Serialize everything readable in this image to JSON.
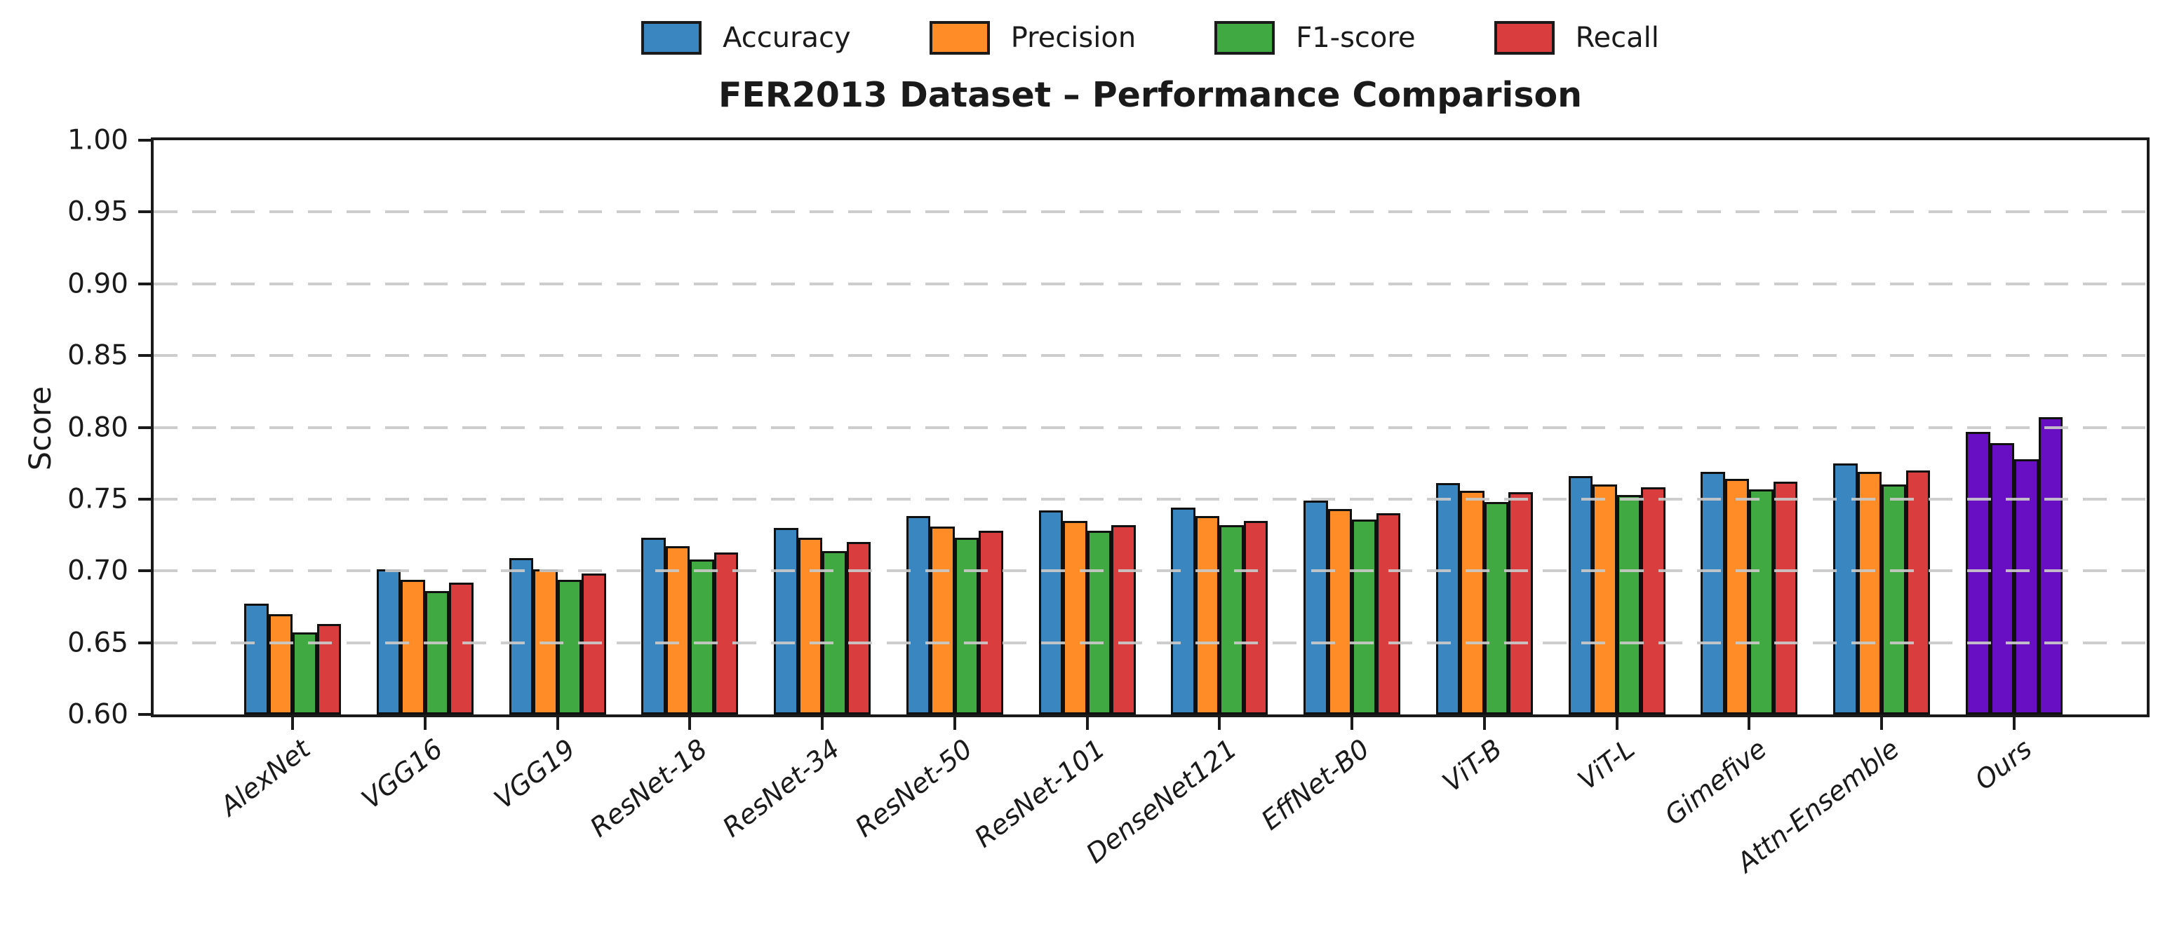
{
  "figure": {
    "title": "FER2013 Dataset – Performance Comparison",
    "ylabel": "Score"
  },
  "legend": {
    "position": "top center",
    "items": [
      {
        "label": "Accuracy",
        "color": "#3a86c0"
      },
      {
        "label": "Precision",
        "color": "#ff8c26"
      },
      {
        "label": "F1-score",
        "color": "#41a941"
      },
      {
        "label": "Recall",
        "color": "#da3d3d"
      }
    ]
  },
  "chart_data": {
    "type": "bar",
    "title": "FER2013 Dataset – Performance Comparison",
    "xlabel": "",
    "ylabel": "Score",
    "ylim": [
      0.6,
      1.0
    ],
    "yticks": [
      0.6,
      0.65,
      0.7,
      0.75,
      0.8,
      0.85,
      0.9,
      0.95,
      1.0
    ],
    "grid": "horizontal dashed gridlines every 0.05, drawn above bars",
    "legend_position": "top center, horizontal",
    "categories": [
      "AlexNet",
      "VGG16",
      "VGG19",
      "ResNet-18",
      "ResNet-34",
      "ResNet-50",
      "ResNet-101",
      "DenseNet121",
      "EffNet-B0",
      "ViT-B",
      "ViT-L",
      "Gimefive",
      "Attn-Ensemble",
      "Ours"
    ],
    "series": [
      {
        "name": "Accuracy",
        "color": "#3a86c0",
        "values": [
          0.677,
          0.701,
          0.709,
          0.723,
          0.73,
          0.738,
          0.742,
          0.744,
          0.749,
          0.761,
          0.766,
          0.769,
          0.775,
          0.797
        ]
      },
      {
        "name": "Precision",
        "color": "#ff8c26",
        "values": [
          0.67,
          0.694,
          0.701,
          0.717,
          0.723,
          0.731,
          0.735,
          0.738,
          0.743,
          0.756,
          0.76,
          0.764,
          0.769,
          0.789
        ]
      },
      {
        "name": "F1-score",
        "color": "#41a941",
        "values": [
          0.657,
          0.686,
          0.694,
          0.708,
          0.714,
          0.723,
          0.728,
          0.732,
          0.736,
          0.748,
          0.753,
          0.757,
          0.76,
          0.778
        ]
      },
      {
        "name": "Recall",
        "color": "#da3d3d",
        "values": [
          0.663,
          0.692,
          0.698,
          0.713,
          0.72,
          0.728,
          0.732,
          0.735,
          0.74,
          0.755,
          0.758,
          0.762,
          0.77,
          0.807
        ]
      }
    ],
    "highlight": {
      "category": "Ours",
      "color": "#690fc3",
      "note": "all four bars of the Ours group are purple"
    },
    "bar_edge_color": "#101010",
    "xtick_label_style": "italic, rotated ~38deg"
  }
}
